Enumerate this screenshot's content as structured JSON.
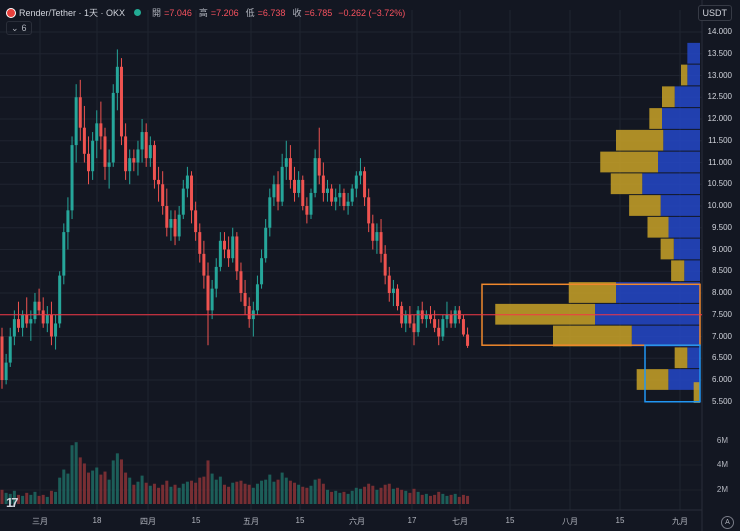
{
  "legend": {
    "symbol": "Render/Tether · 1天 · OKX",
    "open_label": "開",
    "open": "=7.046",
    "high_label": "高",
    "high": "=7.206",
    "low_label": "低",
    "low": "=6.738",
    "close_label": "收",
    "close": "=6.785",
    "change": "−0.262 (−3.72%)"
  },
  "indicator_toggle": {
    "count": "6"
  },
  "currency": "USDT",
  "price_axis": [
    "14.000",
    "13.500",
    "13.000",
    "12.500",
    "12.000",
    "11.500",
    "11.000",
    "10.500",
    "10.000",
    "9.500",
    "9.000",
    "8.500",
    "8.000",
    "7.500",
    "7.000",
    "6.500",
    "6.000",
    "5.500"
  ],
  "volume_axis": [
    "6M",
    "4M",
    "2M"
  ],
  "time_axis": [
    "三月",
    "18",
    "四月",
    "15",
    "五月",
    "15",
    "六月",
    "17",
    "七月",
    "15",
    "八月",
    "15",
    "九月"
  ],
  "colors": {
    "up": "#26a69a",
    "down": "#ef5350",
    "vp_up": "#2448c8",
    "vp_down": "#c9a227",
    "box_orange": "#f0882c",
    "box_blue": "#2196f3",
    "poc": "#f23645"
  },
  "chart_data": {
    "type": "candlestick",
    "quote": "USDT",
    "ylim": [
      5.3,
      14.4
    ],
    "volume_ylim": [
      0,
      7.5
    ],
    "poc_price": 7.5,
    "candles": [
      [
        7.0,
        7.2,
        5.8,
        6.0
      ],
      [
        6.0,
        6.6,
        5.9,
        6.4
      ],
      [
        6.4,
        7.2,
        6.3,
        7.0
      ],
      [
        7.0,
        7.6,
        6.8,
        7.4
      ],
      [
        7.4,
        7.8,
        7.1,
        7.2
      ],
      [
        7.2,
        7.6,
        7.0,
        7.5
      ],
      [
        7.5,
        7.9,
        7.2,
        7.3
      ],
      [
        7.3,
        7.6,
        6.9,
        7.4
      ],
      [
        7.4,
        8.0,
        7.3,
        7.8
      ],
      [
        7.8,
        8.1,
        7.5,
        7.6
      ],
      [
        7.6,
        7.9,
        7.2,
        7.3
      ],
      [
        7.3,
        7.7,
        7.1,
        7.5
      ],
      [
        7.5,
        7.8,
        6.8,
        7.0
      ],
      [
        7.0,
        7.5,
        6.7,
        7.3
      ],
      [
        7.3,
        8.5,
        7.2,
        8.4
      ],
      [
        8.4,
        9.6,
        8.2,
        9.4
      ],
      [
        9.4,
        10.2,
        9.0,
        9.9
      ],
      [
        9.9,
        11.6,
        9.7,
        11.4
      ],
      [
        11.4,
        12.8,
        11.0,
        12.5
      ],
      [
        12.5,
        12.9,
        11.5,
        11.8
      ],
      [
        11.8,
        12.3,
        11.0,
        11.2
      ],
      [
        11.2,
        11.6,
        10.5,
        10.8
      ],
      [
        10.8,
        11.7,
        10.6,
        11.5
      ],
      [
        11.5,
        12.2,
        11.1,
        11.9
      ],
      [
        11.9,
        12.4,
        11.3,
        11.6
      ],
      [
        11.6,
        11.8,
        10.6,
        10.9
      ],
      [
        10.9,
        11.3,
        10.4,
        11.0
      ],
      [
        11.0,
        12.8,
        10.9,
        12.6
      ],
      [
        12.6,
        13.6,
        12.2,
        13.2
      ],
      [
        13.2,
        13.4,
        11.4,
        11.6
      ],
      [
        11.6,
        11.9,
        10.6,
        10.8
      ],
      [
        10.8,
        11.3,
        10.5,
        11.1
      ],
      [
        11.1,
        11.3,
        10.8,
        11.0
      ],
      [
        11.0,
        11.5,
        10.7,
        11.3
      ],
      [
        11.3,
        12.0,
        11.0,
        11.7
      ],
      [
        11.7,
        11.9,
        10.9,
        11.1
      ],
      [
        11.1,
        11.6,
        10.9,
        11.4
      ],
      [
        11.4,
        11.5,
        10.4,
        10.6
      ],
      [
        10.6,
        10.9,
        10.1,
        10.5
      ],
      [
        10.5,
        10.8,
        9.8,
        10.0
      ],
      [
        10.0,
        10.4,
        9.3,
        9.5
      ],
      [
        9.5,
        9.9,
        9.2,
        9.7
      ],
      [
        9.7,
        9.9,
        9.1,
        9.3
      ],
      [
        9.3,
        10.0,
        9.2,
        9.8
      ],
      [
        9.8,
        10.6,
        9.7,
        10.4
      ],
      [
        10.4,
        10.9,
        10.2,
        10.7
      ],
      [
        10.7,
        10.8,
        9.6,
        9.9
      ],
      [
        9.9,
        10.1,
        9.2,
        9.4
      ],
      [
        9.4,
        9.6,
        8.7,
        8.9
      ],
      [
        8.9,
        9.2,
        8.1,
        8.4
      ],
      [
        8.4,
        8.7,
        6.8,
        7.6
      ],
      [
        7.6,
        8.3,
        7.4,
        8.1
      ],
      [
        8.1,
        8.8,
        7.9,
        8.6
      ],
      [
        8.6,
        9.4,
        8.5,
        9.2
      ],
      [
        9.2,
        9.4,
        8.8,
        9.0
      ],
      [
        9.0,
        9.3,
        8.6,
        8.8
      ],
      [
        8.8,
        9.5,
        8.7,
        9.3
      ],
      [
        9.3,
        9.4,
        8.3,
        8.5
      ],
      [
        8.5,
        8.7,
        7.8,
        8.0
      ],
      [
        8.0,
        8.3,
        7.5,
        7.7
      ],
      [
        7.7,
        7.9,
        7.2,
        7.4
      ],
      [
        7.4,
        7.8,
        7.0,
        7.6
      ],
      [
        7.6,
        8.4,
        7.5,
        8.2
      ],
      [
        8.2,
        9.0,
        8.1,
        8.8
      ],
      [
        8.8,
        9.7,
        8.7,
        9.5
      ],
      [
        9.5,
        10.4,
        9.3,
        10.2
      ],
      [
        10.2,
        10.7,
        10.0,
        10.5
      ],
      [
        10.5,
        10.8,
        9.9,
        10.1
      ],
      [
        10.1,
        11.2,
        10.0,
        10.9
      ],
      [
        10.9,
        11.5,
        10.6,
        11.1
      ],
      [
        11.1,
        11.4,
        10.4,
        10.6
      ],
      [
        10.6,
        10.9,
        10.1,
        10.3
      ],
      [
        10.3,
        10.8,
        10.2,
        10.6
      ],
      [
        10.6,
        10.7,
        9.9,
        10.0
      ],
      [
        10.0,
        10.2,
        9.6,
        9.8
      ],
      [
        9.8,
        10.4,
        9.7,
        10.3
      ],
      [
        10.3,
        11.3,
        10.2,
        11.1
      ],
      [
        11.1,
        11.8,
        10.5,
        10.7
      ],
      [
        10.7,
        11.0,
        10.1,
        10.3
      ],
      [
        10.3,
        10.6,
        10.1,
        10.4
      ],
      [
        10.4,
        10.5,
        10.0,
        10.1
      ],
      [
        10.1,
        10.4,
        9.9,
        10.2
      ],
      [
        10.2,
        10.5,
        10.0,
        10.3
      ],
      [
        10.3,
        10.4,
        9.9,
        10.0
      ],
      [
        10.0,
        10.3,
        9.8,
        10.1
      ],
      [
        10.1,
        10.5,
        10.0,
        10.4
      ],
      [
        10.4,
        10.8,
        10.2,
        10.7
      ],
      [
        10.7,
        11.1,
        10.5,
        10.8
      ],
      [
        10.8,
        10.9,
        10.0,
        10.2
      ],
      [
        10.2,
        10.4,
        9.4,
        9.6
      ],
      [
        9.6,
        9.8,
        9.0,
        9.2
      ],
      [
        9.2,
        9.6,
        8.9,
        9.4
      ],
      [
        9.4,
        9.7,
        8.7,
        8.9
      ],
      [
        8.9,
        9.1,
        8.2,
        8.4
      ],
      [
        8.4,
        8.6,
        7.8,
        8.0
      ],
      [
        8.0,
        8.3,
        7.7,
        8.1
      ],
      [
        8.1,
        8.2,
        7.6,
        7.7
      ],
      [
        7.7,
        7.8,
        7.2,
        7.3
      ],
      [
        7.3,
        7.6,
        7.1,
        7.5
      ],
      [
        7.5,
        7.7,
        7.2,
        7.3
      ],
      [
        7.3,
        7.5,
        6.8,
        7.1
      ],
      [
        7.1,
        7.7,
        7.0,
        7.6
      ],
      [
        7.6,
        7.8,
        7.3,
        7.4
      ],
      [
        7.4,
        7.6,
        7.2,
        7.5
      ],
      [
        7.5,
        7.7,
        7.3,
        7.4
      ],
      [
        7.4,
        7.6,
        7.1,
        7.2
      ],
      [
        7.2,
        7.4,
        6.8,
        7.0
      ],
      [
        7.0,
        7.5,
        6.9,
        7.4
      ],
      [
        7.4,
        7.8,
        7.2,
        7.5
      ],
      [
        7.5,
        7.6,
        7.2,
        7.3
      ],
      [
        7.3,
        7.7,
        7.2,
        7.6
      ],
      [
        7.6,
        7.7,
        7.3,
        7.4
      ],
      [
        7.4,
        7.5,
        7.0,
        7.046
      ],
      [
        7.046,
        7.206,
        6.738,
        6.785
      ]
    ],
    "volume": [
      1.4,
      1.1,
      1.0,
      1.3,
      0.9,
      0.8,
      1.1,
      0.9,
      1.2,
      0.8,
      0.9,
      0.7,
      1.3,
      1.2,
      2.6,
      3.4,
      3.0,
      5.8,
      6.1,
      4.6,
      4.0,
      3.1,
      3.3,
      3.6,
      2.9,
      3.2,
      2.4,
      4.3,
      5.0,
      4.4,
      3.1,
      2.6,
      1.9,
      2.2,
      2.8,
      2.1,
      1.8,
      2.0,
      1.6,
      1.9,
      2.3,
      1.7,
      1.9,
      1.6,
      2.0,
      2.2,
      2.3,
      2.1,
      2.6,
      2.7,
      4.3,
      3.0,
      2.4,
      2.7,
      1.9,
      1.7,
      2.1,
      2.2,
      2.3,
      2.0,
      1.9,
      1.6,
      2.0,
      2.3,
      2.4,
      2.9,
      2.2,
      2.4,
      3.1,
      2.6,
      2.3,
      2.1,
      1.9,
      1.7,
      1.6,
      1.8,
      2.4,
      2.5,
      2.0,
      1.4,
      1.2,
      1.3,
      1.1,
      1.2,
      1.0,
      1.3,
      1.6,
      1.5,
      1.7,
      2.0,
      1.8,
      1.4,
      1.6,
      1.9,
      2.0,
      1.5,
      1.6,
      1.4,
      1.3,
      1.1,
      1.5,
      1.2,
      0.9,
      1.0,
      0.8,
      0.9,
      1.2,
      1.0,
      0.8,
      0.9,
      1.0,
      0.7,
      0.9,
      0.8
    ],
    "volume_profile_main": [
      [
        7.0,
        0.3,
        0.26
      ],
      [
        7.5,
        0.38,
        0.4
      ],
      [
        8.0,
        0.18,
        0.32
      ],
      [
        8.5,
        0.05,
        0.06
      ],
      [
        9.0,
        0.05,
        0.1
      ],
      [
        9.5,
        0.08,
        0.12
      ],
      [
        10.0,
        0.12,
        0.15
      ],
      [
        10.5,
        0.12,
        0.22
      ],
      [
        11.0,
        0.22,
        0.16
      ],
      [
        11.5,
        0.18,
        0.14
      ]
    ],
    "volume_profile_side": [
      [
        12.0,
        0.02,
        0.06
      ],
      [
        12.5,
        0.02,
        0.04
      ],
      [
        13.0,
        0.01,
        0.02
      ],
      [
        13.5,
        0.0,
        0.02
      ],
      [
        6.0,
        0.05,
        0.05
      ],
      [
        6.5,
        0.02,
        0.02
      ],
      [
        5.7,
        0.01,
        0.0
      ]
    ],
    "boxes": [
      {
        "name": "orange",
        "price_range": [
          6.8,
          8.2
        ],
        "color": "#f0882c"
      },
      {
        "name": "blue",
        "price_range": [
          5.5,
          6.8
        ],
        "color": "#2196f3"
      }
    ]
  }
}
